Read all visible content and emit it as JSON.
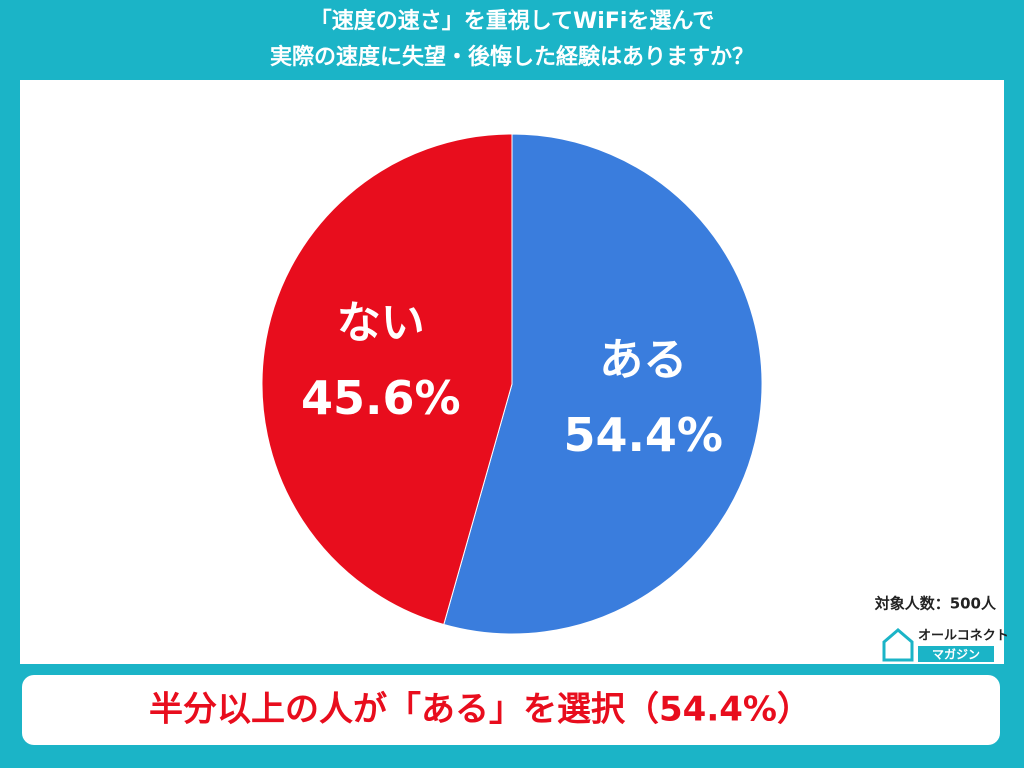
{
  "chart_data": {
    "type": "pie",
    "title": [
      "「速度の速さ」を重視してWiFiを選んで",
      "実際の速度に失望・後悔した経験はありますか？"
    ],
    "categories": [
      "ある",
      "ない"
    ],
    "values": [
      54.4,
      45.6
    ],
    "value_labels": [
      "54.4%",
      "45.6%"
    ],
    "colors": [
      "#3a7ddd",
      "#e80d1d"
    ],
    "note": "対象人数：500人"
  },
  "logo": {
    "name": "オールコネクト",
    "sub": "マガジン"
  },
  "summary": "半分以上の人が「ある」を選択（54.4%）"
}
